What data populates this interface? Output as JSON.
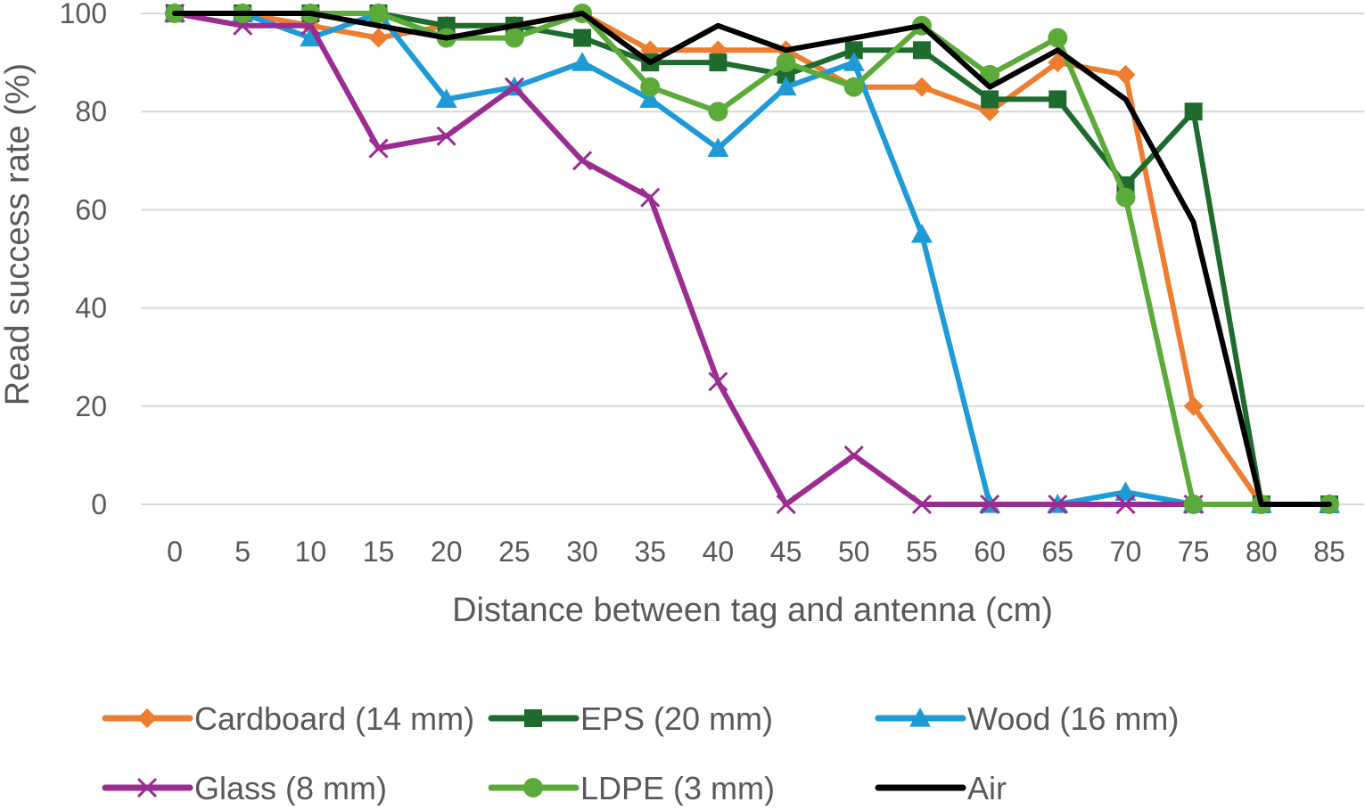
{
  "chart_data": {
    "type": "line",
    "title": "",
    "xlabel": "Distance between tag and antenna (cm)",
    "ylabel": "Read success rate (%)",
    "x": [
      0,
      5,
      10,
      15,
      20,
      25,
      30,
      35,
      40,
      45,
      50,
      55,
      60,
      65,
      70,
      75,
      80,
      85
    ],
    "ylim": [
      0,
      100
    ],
    "yticks": [
      0,
      20,
      40,
      60,
      80,
      100
    ],
    "grid": "horizontal",
    "legend_position": "bottom",
    "series": [
      {
        "name": "Cardboard (14 mm)",
        "color": "#ED7D31",
        "marker": "diamond",
        "values": [
          100,
          100,
          97.5,
          95,
          97.5,
          97.5,
          100,
          92.5,
          92.5,
          92.5,
          85,
          85,
          80,
          90,
          87.5,
          20,
          0,
          0
        ]
      },
      {
        "name": "EPS (20 mm)",
        "color": "#1E6B2E",
        "marker": "square",
        "values": [
          100,
          100,
          100,
          100,
          97.5,
          97.5,
          95,
          90,
          90,
          87.5,
          92.5,
          92.5,
          82.5,
          82.5,
          65,
          80,
          0,
          0
        ]
      },
      {
        "name": "Wood (16 mm)",
        "color": "#1E9BD7",
        "marker": "triangle",
        "values": [
          100,
          100,
          95,
          100,
          82.5,
          85,
          90,
          82.5,
          72.5,
          85,
          90,
          55,
          0,
          0,
          2.5,
          0,
          0,
          0
        ]
      },
      {
        "name": "Glass (8 mm)",
        "color": "#9B2C91",
        "marker": "x",
        "values": [
          100,
          97.5,
          97.5,
          72.5,
          75,
          85,
          70,
          62.5,
          25,
          0,
          10,
          0,
          0,
          0,
          0,
          0,
          null,
          null
        ]
      },
      {
        "name": "LDPE (3 mm)",
        "color": "#5BAA3A",
        "marker": "circle",
        "values": [
          100,
          100,
          100,
          100,
          95,
          95,
          100,
          85,
          80,
          90,
          85,
          97.5,
          87.5,
          95,
          62.5,
          0,
          0,
          0
        ]
      },
      {
        "name": "Air",
        "color": "#000000",
        "marker": "none",
        "values": [
          100,
          100,
          100,
          97.5,
          95,
          97.5,
          100,
          90,
          97.5,
          92.5,
          95,
          97.5,
          85,
          92.5,
          82.5,
          57.5,
          0,
          0
        ]
      }
    ]
  }
}
